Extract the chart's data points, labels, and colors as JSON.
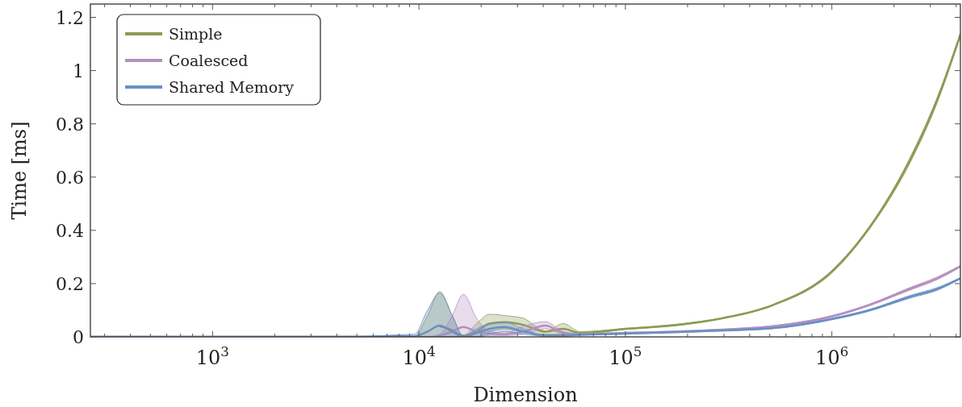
{
  "chart_data": {
    "type": "line",
    "xlabel": "Dimension",
    "ylabel": "Time [ms]",
    "log": "x",
    "grid": false,
    "legend": "top left",
    "line_style": "solid",
    "marker": "none",
    "xlim": [
      256,
      4194304
    ],
    "ylim": [
      0,
      1.25
    ],
    "xticks": [
      {
        "value": 300,
        "label": null
      },
      {
        "value": 400,
        "label": null
      },
      {
        "value": 500,
        "label": null
      },
      {
        "value": 600,
        "label": null
      },
      {
        "value": 700,
        "label": null
      },
      {
        "value": 800,
        "label": null
      },
      {
        "value": 900,
        "label": null
      },
      {
        "value": 1000,
        "label": "10$^{3}$"
      },
      {
        "value": 2000,
        "label": null
      },
      {
        "value": 3000,
        "label": null
      },
      {
        "value": 4000,
        "label": null
      },
      {
        "value": 5000,
        "label": null
      },
      {
        "value": 6000,
        "label": null
      },
      {
        "value": 7000,
        "label": null
      },
      {
        "value": 8000,
        "label": null
      },
      {
        "value": 9000,
        "label": null
      },
      {
        "value": 10000,
        "label": "10$^{4}$"
      },
      {
        "value": 20000,
        "label": null
      },
      {
        "value": 30000,
        "label": null
      },
      {
        "value": 40000,
        "label": null
      },
      {
        "value": 50000,
        "label": null
      },
      {
        "value": 60000,
        "label": null
      },
      {
        "value": 70000,
        "label": null
      },
      {
        "value": 80000,
        "label": null
      },
      {
        "value": 90000,
        "label": null
      },
      {
        "value": 100000,
        "label": "10$^{5}$"
      },
      {
        "value": 200000,
        "label": null
      },
      {
        "value": 300000,
        "label": null
      },
      {
        "value": 400000,
        "label": null
      },
      {
        "value": 500000,
        "label": null
      },
      {
        "value": 600000,
        "label": null
      },
      {
        "value": 700000,
        "label": null
      },
      {
        "value": 800000,
        "label": null
      },
      {
        "value": 900000,
        "label": null
      },
      {
        "value": 1000000,
        "label": "10$^{6}$"
      },
      {
        "value": 2000000,
        "label": null
      },
      {
        "value": 3000000,
        "label": null
      },
      {
        "value": 4000000,
        "label": null
      }
    ],
    "yticks": [
      0,
      0.2,
      0.4,
      0.6,
      0.8,
      1,
      1.2
    ],
    "x": [
      256,
      1000,
      5000,
      8192,
      9500,
      11000,
      12600,
      14500,
      16400,
      19000,
      22000,
      26000,
      32000,
      41000,
      50000,
      60000,
      100000,
      178000,
      295000,
      520000,
      1000000,
      1520000,
      2380000,
      3240000,
      4194304
    ],
    "series": [
      {
        "name": "Simple",
        "color": "#8a9b55",
        "values": [
          0,
          0,
          0,
          0,
          0,
          null,
          0.04,
          0.025,
          0.005,
          0.02,
          0.05,
          0.055,
          0.045,
          0.02,
          0.03,
          0.015,
          0.03,
          0.045,
          0.07,
          0.12,
          0.245,
          0.41,
          0.66,
          0.89,
          1.135
        ],
        "upper": [
          0,
          0,
          0,
          0,
          0.002,
          0.08,
          0.17,
          0.08,
          0.005,
          0.05,
          0.085,
          0.08,
          0.07,
          0.02,
          0.05,
          0.02,
          0.032,
          0.048,
          0.072,
          0.122,
          0.25,
          0.415,
          0.67,
          0.9,
          1.14
        ],
        "lower": [
          0,
          0,
          0,
          0,
          0,
          0,
          0,
          0,
          0,
          0,
          0.02,
          0.03,
          0.02,
          0.01,
          0.01,
          0.01,
          0.028,
          0.042,
          0.068,
          0.118,
          0.24,
          0.405,
          0.65,
          0.88,
          1.13
        ]
      },
      {
        "name": "Coalesced",
        "color": "#b48fbf",
        "values": [
          0,
          0,
          0,
          0,
          0,
          0,
          0.005,
          0.02,
          0.037,
          0.02,
          0.012,
          0.01,
          0.02,
          0.042,
          0.015,
          0.01,
          0.015,
          0.02,
          0.027,
          0.04,
          0.077,
          0.12,
          0.18,
          0.22,
          0.265
        ],
        "upper": [
          0,
          0,
          0,
          0,
          0,
          0,
          0.01,
          0.08,
          0.16,
          0.07,
          0.02,
          0.015,
          0.04,
          0.057,
          0.02,
          0.012,
          0.017,
          0.022,
          0.029,
          0.042,
          0.08,
          0.123,
          0.185,
          0.225,
          0.268
        ],
        "lower": [
          0,
          0,
          0,
          0,
          0,
          0,
          0,
          0,
          0,
          0,
          0.005,
          0.005,
          0.01,
          0.03,
          0.01,
          0.008,
          0.013,
          0.018,
          0.025,
          0.038,
          0.074,
          0.117,
          0.175,
          0.215,
          0.262
        ]
      },
      {
        "name": "Shared Memory",
        "color": "#6a8fc4",
        "values": [
          0,
          0,
          0,
          0.003,
          0.002,
          0.02,
          0.042,
          0.02,
          0,
          0.015,
          0.03,
          0.037,
          0.02,
          0.005,
          0.005,
          0.008,
          0.012,
          0.018,
          0.024,
          0.033,
          0.067,
          0.1,
          0.15,
          0.18,
          0.22
        ],
        "upper": [
          0,
          0,
          0.002,
          0.008,
          0.01,
          0.1,
          0.165,
          0.08,
          0.003,
          0.03,
          0.05,
          0.055,
          0.03,
          0.006,
          0.006,
          0.009,
          0.013,
          0.02,
          0.026,
          0.035,
          0.07,
          0.103,
          0.155,
          0.185,
          0.222
        ],
        "lower": [
          0,
          0,
          0,
          0,
          0,
          0,
          0,
          0,
          0,
          0,
          0.01,
          0.02,
          0.01,
          0.003,
          0.003,
          0.006,
          0.011,
          0.016,
          0.022,
          0.031,
          0.064,
          0.097,
          0.145,
          0.175,
          0.218
        ]
      }
    ]
  }
}
